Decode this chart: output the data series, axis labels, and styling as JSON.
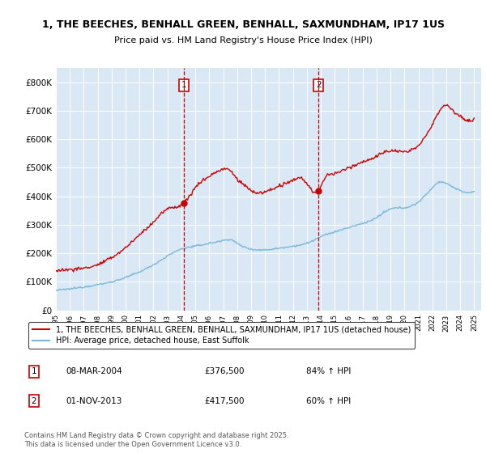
{
  "title_line1": "1, THE BEECHES, BENHALL GREEN, BENHALL, SAXMUNDHAM, IP17 1US",
  "title_line2": "Price paid vs. HM Land Registry's House Price Index (HPI)",
  "bg_color": "#dae8f5",
  "hpi_line_color": "#7ab8d9",
  "price_line_color": "#cc0000",
  "sale1_year": 2004.19,
  "sale1_price": 376500,
  "sale1_label": "1",
  "sale1_date": "08-MAR-2004",
  "sale2_year": 2013.83,
  "sale2_price": 417500,
  "sale2_label": "2",
  "sale2_date": "01-NOV-2013",
  "ylim_min": 0,
  "ylim_max": 850000,
  "legend_label1": "1, THE BEECHES, BENHALL GREEN, BENHALL, SAXMUNDHAM, IP17 1US (detached house)",
  "legend_label2": "HPI: Average price, detached house, East Suffolk",
  "footer1": "Contains HM Land Registry data © Crown copyright and database right 2025.",
  "footer2": "This data is licensed under the Open Government Licence v3.0."
}
